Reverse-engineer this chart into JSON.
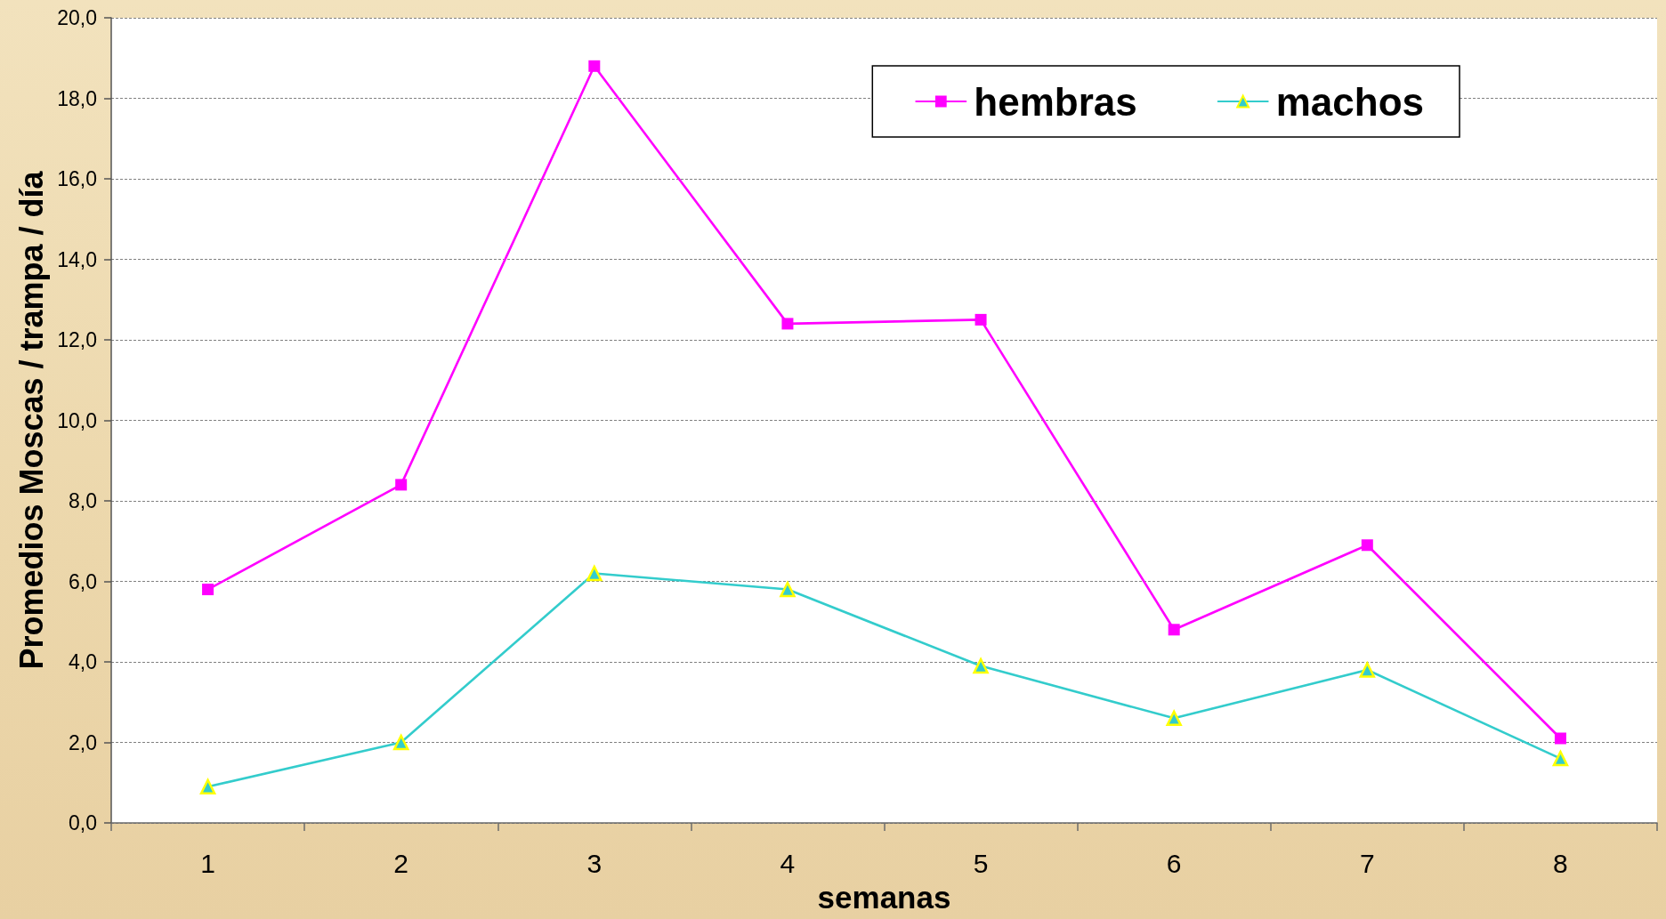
{
  "chart_data": {
    "type": "line",
    "xlabel": "semanas",
    "ylabel": "Promedios Moscas / trampa / día",
    "categories": [
      "1",
      "2",
      "3",
      "4",
      "5",
      "6",
      "7",
      "8"
    ],
    "series": [
      {
        "name": "hembras",
        "color": "#ff00ff",
        "marker": "square",
        "values": [
          5.8,
          8.4,
          18.8,
          12.4,
          12.5,
          4.8,
          6.9,
          2.1
        ]
      },
      {
        "name": "machos",
        "color": "#33cccc",
        "marker": "triangle",
        "values": [
          0.9,
          2.0,
          6.2,
          5.8,
          3.9,
          2.6,
          3.8,
          1.6
        ]
      }
    ],
    "ylim": [
      0,
      20
    ],
    "yticks": [
      {
        "value": 0,
        "label": "0,0"
      },
      {
        "value": 2,
        "label": "2,0"
      },
      {
        "value": 4,
        "label": "4,0"
      },
      {
        "value": 6,
        "label": "6,0"
      },
      {
        "value": 8,
        "label": "8,0"
      },
      {
        "value": 10,
        "label": "10,0"
      },
      {
        "value": 12,
        "label": "12,0"
      },
      {
        "value": 14,
        "label": "14,0"
      },
      {
        "value": 16,
        "label": "16,0"
      },
      {
        "value": 18,
        "label": "18,0"
      },
      {
        "value": 20,
        "label": "20,0"
      }
    ],
    "grid": "y",
    "legend": "top right"
  }
}
